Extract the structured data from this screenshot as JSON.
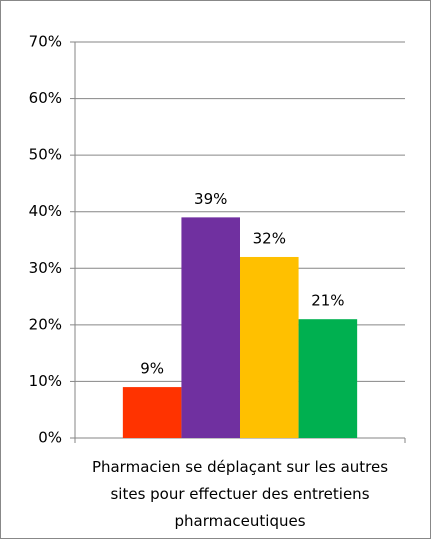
{
  "chart_data": {
    "type": "bar",
    "categories": [
      "Pharmacien se déplaçant sur les autres sites pour effectuer des entretiens pharmaceutiques"
    ],
    "series": [
      {
        "color": "#ff3300",
        "values": [
          9
        ],
        "value_labels": [
          "9%"
        ]
      },
      {
        "color": "#7030a0",
        "values": [
          39
        ],
        "value_labels": [
          "39%"
        ]
      },
      {
        "color": "#ffc000",
        "values": [
          32
        ],
        "value_labels": [
          "32%"
        ]
      },
      {
        "color": "#00b050",
        "values": [
          21
        ],
        "value_labels": [
          "21%"
        ]
      }
    ],
    "ylim": [
      0,
      70
    ],
    "yticks": [
      {
        "value": 0,
        "label": "0%"
      },
      {
        "value": 10,
        "label": "10%"
      },
      {
        "value": 20,
        "label": "20%"
      },
      {
        "value": 30,
        "label": "30%"
      },
      {
        "value": 40,
        "label": "40%"
      },
      {
        "value": 50,
        "label": "50%"
      },
      {
        "value": 60,
        "label": "60%"
      },
      {
        "value": 70,
        "label": "70%"
      }
    ],
    "grid": true
  }
}
